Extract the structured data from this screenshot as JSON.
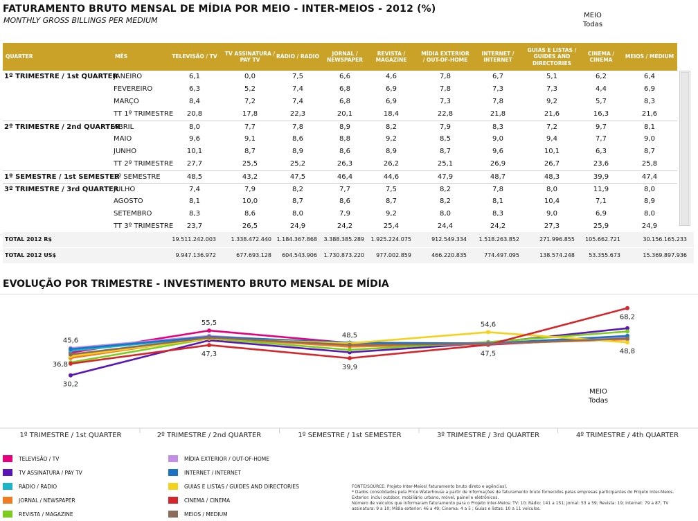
{
  "header": {
    "title": "FATURAMENTO BRUTO MENSAL DE MÍDIA POR MEIO - INTER-MEIOS - 2012 (%)",
    "subtitle": "MONTHLY GROSS BILLINGS PER MEDIUM",
    "filter_label": "MEIO",
    "filter_value": "Todas"
  },
  "table": {
    "columns": [
      "QUARTER",
      "MÊS",
      "TELEVISÃO / TV",
      "TV ASSINATURA / PAY TV",
      "RÁDIO / RADIO",
      "JORNAL / NEWSPAPER",
      "REVISTA / MAGAZINE",
      "MÍDIA EXTERIOR / OUT-OF-HOME",
      "INTERNET / INTERNET",
      "GUIAS E LISTAS / GUIDES AND DIRECTORIES",
      "CINEMA / CINEMA",
      "MEIOS / MEDIUM"
    ],
    "rows": [
      {
        "quarter": "1º TRIMESTRE / 1st QUARTER",
        "month": "JANEIRO",
        "values": [
          "6,1",
          "0,0",
          "7,5",
          "6,6",
          "4,6",
          "7,8",
          "6,7",
          "5,1",
          "6,2",
          "6,4"
        ]
      },
      {
        "quarter": "",
        "month": "FEVEREIRO",
        "values": [
          "6,3",
          "5,2",
          "7,4",
          "6,8",
          "6,9",
          "7,8",
          "7,3",
          "7,3",
          "4,4",
          "6,9"
        ]
      },
      {
        "quarter": "",
        "month": "MARÇO",
        "values": [
          "8,4",
          "7,2",
          "7,4",
          "6,8",
          "6,9",
          "7,3",
          "7,8",
          "9,2",
          "5,7",
          "8,3"
        ]
      },
      {
        "quarter": "",
        "month": "TT 1º TRIMESTRE",
        "values": [
          "20,8",
          "17,8",
          "22,3",
          "20,1",
          "18,4",
          "22,8",
          "21,8",
          "21,6",
          "16,3",
          "21,6"
        ]
      },
      {
        "quarter": "2º TRIMESTRE / 2nd QUARTER",
        "month": "ABRIL",
        "values": [
          "8,0",
          "7,7",
          "7,8",
          "8,9",
          "8,2",
          "7,9",
          "8,3",
          "7,2",
          "9,7",
          "8,1"
        ]
      },
      {
        "quarter": "",
        "month": "MAIO",
        "values": [
          "9,6",
          "9,1",
          "8,6",
          "8,8",
          "9,2",
          "8,5",
          "9,0",
          "9,4",
          "7,7",
          "9,0"
        ]
      },
      {
        "quarter": "",
        "month": "JUNHO",
        "values": [
          "10,1",
          "8,7",
          "8,9",
          "8,6",
          "8,9",
          "8,7",
          "9,6",
          "10,1",
          "6,3",
          "8,7"
        ]
      },
      {
        "quarter": "",
        "month": "TT 2º TRIMESTRE",
        "values": [
          "27,7",
          "25,5",
          "25,2",
          "26,3",
          "26,2",
          "25,1",
          "26,9",
          "26,7",
          "23,6",
          "25,8"
        ]
      },
      {
        "quarter": "1º SEMESTRE / 1st SEMESTER",
        "month": "1º SEMESTRE",
        "values": [
          "48,5",
          "43,2",
          "47,5",
          "46,4",
          "44,6",
          "47,9",
          "48,7",
          "48,3",
          "39,9",
          "47,4"
        ]
      },
      {
        "quarter": "3º TRIMESTRE / 3rd QUARTER",
        "month": "JULHO",
        "values": [
          "7,4",
          "7,9",
          "8,2",
          "7,7",
          "7,5",
          "8,2",
          "7,8",
          "8,0",
          "11,9",
          "8,0"
        ]
      },
      {
        "quarter": "",
        "month": "AGOSTO",
        "values": [
          "8,1",
          "10,0",
          "8,7",
          "8,6",
          "8,7",
          "8,2",
          "8,1",
          "10,4",
          "7,1",
          "8,9"
        ]
      },
      {
        "quarter": "",
        "month": "SETEMBRO",
        "values": [
          "8,3",
          "8,6",
          "8,0",
          "7,9",
          "9,2",
          "8,0",
          "8,3",
          "9,0",
          "6,9",
          "8,0"
        ]
      },
      {
        "quarter": "",
        "month": "TT 3º TRIMESTRE",
        "values": [
          "23,7",
          "26,5",
          "24,9",
          "24,2",
          "25,4",
          "24,4",
          "24,2",
          "27,3",
          "25,9",
          "24,9"
        ]
      }
    ],
    "totals": [
      {
        "label": "TOTAL 2012 R$",
        "values": [
          "19.511.242.003",
          "1.338.472.440",
          "1.184.367.868",
          "3.388.385.289",
          "1.925.224.075",
          "912.549.334",
          "1.518.263.852",
          "271.996.855",
          "105.662.721",
          "30.156.165.233"
        ]
      },
      {
        "label": "TOTAL 2012 US$",
        "values": [
          "9.947.136.972",
          "677.693.128",
          "604.543.906",
          "1.730.873.220",
          "977.002.859",
          "466.220.835",
          "774.497.095",
          "138.574.248",
          "53.355.673",
          "15.369.897.936"
        ]
      }
    ]
  },
  "chart_title": "EVOLUÇÃO POR TRIMESTRE - INVESTIMENTO BRUTO MENSAL DE MÍDIA",
  "chart_data": {
    "type": "line",
    "categories": [
      "1º TRIMESTRE / 1st QUARTER",
      "2º TRIMESTRE / 2nd QUARTER",
      "1º SEMESTRE / 1st SEMESTER",
      "3º TRIMESTRE / 3rd QUARTER",
      "4º TRIMESTRE / 4th QUARTER"
    ],
    "ylim": [
      25,
      72
    ],
    "series": [
      {
        "name": "TELEVISÃO / TV",
        "color": "#e6007e",
        "values": [
          43.0,
          55.5,
          48.5,
          47.5,
          51.5
        ]
      },
      {
        "name": "TV ASSINATURA / PAY TV",
        "color": "#5b17b5",
        "values": [
          30.2,
          50.0,
          43.2,
          48.5,
          56.8
        ]
      },
      {
        "name": "RÁDIO / RADIO",
        "color": "#1ab6c8",
        "values": [
          44.0,
          52.0,
          47.5,
          48.0,
          51.0
        ]
      },
      {
        "name": "JORNAL / NEWSPAPER",
        "color": "#f07c22",
        "values": [
          40.0,
          51.5,
          46.4,
          48.0,
          50.5
        ]
      },
      {
        "name": "REVISTA / MAGAZINE",
        "color": "#7dcd1e",
        "values": [
          37.5,
          51.0,
          44.6,
          49.0,
          55.0
        ]
      },
      {
        "name": "MÍDIA EXTERIOR / OUT-OF-HOME",
        "color": "#c28ee8",
        "values": [
          45.6,
          52.5,
          47.9,
          48.5,
          52.0
        ]
      },
      {
        "name": "INTERNET / INTERNET",
        "color": "#1c73c4",
        "values": [
          45.0,
          52.0,
          48.7,
          48.2,
          52.5
        ]
      },
      {
        "name": "GUIAS E LISTAS / GUIDES AND DIRECTORIES",
        "color": "#f4d21b",
        "values": [
          41.0,
          51.0,
          48.3,
          54.6,
          48.8
        ]
      },
      {
        "name": "CINEMA / CINEMA",
        "color": "#d4262b",
        "values": [
          36.8,
          47.3,
          39.9,
          47.5,
          68.2
        ]
      },
      {
        "name": "MEIOS / MEDIUM",
        "color": "#8b6b5a",
        "values": [
          42.0,
          51.5,
          47.4,
          48.0,
          51.0
        ]
      }
    ],
    "data_labels": [
      {
        "text": "45,6",
        "series": 5,
        "point": 0,
        "pos": "above"
      },
      {
        "text": "36,8",
        "series": 8,
        "point": 0,
        "pos": "left"
      },
      {
        "text": "30,2",
        "series": 1,
        "point": 0,
        "pos": "below"
      },
      {
        "text": "55,5",
        "series": 0,
        "point": 1,
        "pos": "above"
      },
      {
        "text": "47,3",
        "series": 8,
        "point": 1,
        "pos": "below"
      },
      {
        "text": "48,5",
        "series": 0,
        "point": 2,
        "pos": "above"
      },
      {
        "text": "39,9",
        "series": 8,
        "point": 2,
        "pos": "below"
      },
      {
        "text": "54,6",
        "series": 7,
        "point": 3,
        "pos": "above"
      },
      {
        "text": "47,5",
        "series": 8,
        "point": 3,
        "pos": "below"
      },
      {
        "text": "68,2",
        "series": 8,
        "point": 4,
        "pos": "below"
      },
      {
        "text": "48,8",
        "series": 7,
        "point": 4,
        "pos": "below"
      }
    ]
  },
  "chart_filter": {
    "label": "MEIO",
    "value": "Todas"
  },
  "footnote": [
    "FONTE/SOURCE: Projeto Inter-Meios( faturamento bruto direto e agências).",
    "* Dados consolidados pela Price Waterhouse a partir de informações de faturamento bruto fornecidos pelas empresas participantes do Projeto Inter-Meios.",
    "Exterior: inclui outdoor, mobiliário urbano, móvel, painel e eletrônicos.",
    "Número de veículos que informaram faturamento para o Projeto Inter-Meios: TV: 10; Rádio: 141 a 151; Jornal: 53 a 59; Revista: 19; Internet: 79 a 87; TV assinatura: 9 a 10; Mídia exterior: 46 a 49; Cinema: 4 a 5 ; Guias e listas: 10 a 11 veículos."
  ]
}
